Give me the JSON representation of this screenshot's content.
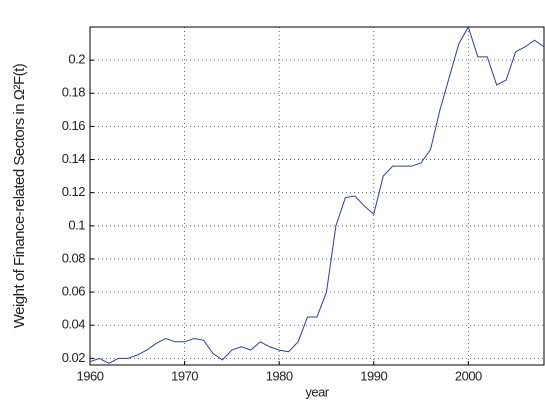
{
  "chart_data": {
    "type": "line",
    "xlabel": "year",
    "ylabel": "Weight of Finance-related Sectors in Ω²F(t)",
    "x": [
      1960,
      1961,
      1962,
      1963,
      1964,
      1965,
      1966,
      1967,
      1968,
      1969,
      1970,
      1971,
      1972,
      1973,
      1974,
      1975,
      1976,
      1977,
      1978,
      1979,
      1980,
      1981,
      1982,
      1983,
      1984,
      1985,
      1986,
      1987,
      1988,
      1989,
      1990,
      1991,
      1992,
      1993,
      1994,
      1995,
      1996,
      1997,
      1998,
      1999,
      2000,
      2001,
      2002,
      2003,
      2004,
      2005,
      2006,
      2007,
      2008
    ],
    "series": [
      {
        "color": "#2b3f9e",
        "values": [
          0.018,
          0.02,
          0.017,
          0.02,
          0.02,
          0.022,
          0.025,
          0.029,
          0.032,
          0.03,
          0.03,
          0.032,
          0.031,
          0.023,
          0.019,
          0.025,
          0.027,
          0.025,
          0.03,
          0.027,
          0.025,
          0.024,
          0.03,
          0.045,
          0.045,
          0.06,
          0.1,
          0.117,
          0.118,
          0.112,
          0.107,
          0.13,
          0.136,
          0.136,
          0.136,
          0.138,
          0.146,
          0.17,
          0.19,
          0.21,
          0.22,
          0.202,
          0.202,
          0.185,
          0.188,
          0.205,
          0.208,
          0.212,
          0.208
        ]
      }
    ],
    "xlim": [
      1960,
      2008
    ],
    "xticks": [
      1960,
      1970,
      1980,
      1990,
      2000
    ],
    "ylim": [
      0.016,
      0.22
    ],
    "yticks": [
      0.02,
      0.04,
      0.06,
      0.08,
      0.1,
      0.12,
      0.14,
      0.16,
      0.18,
      0.2
    ],
    "grid": true
  }
}
